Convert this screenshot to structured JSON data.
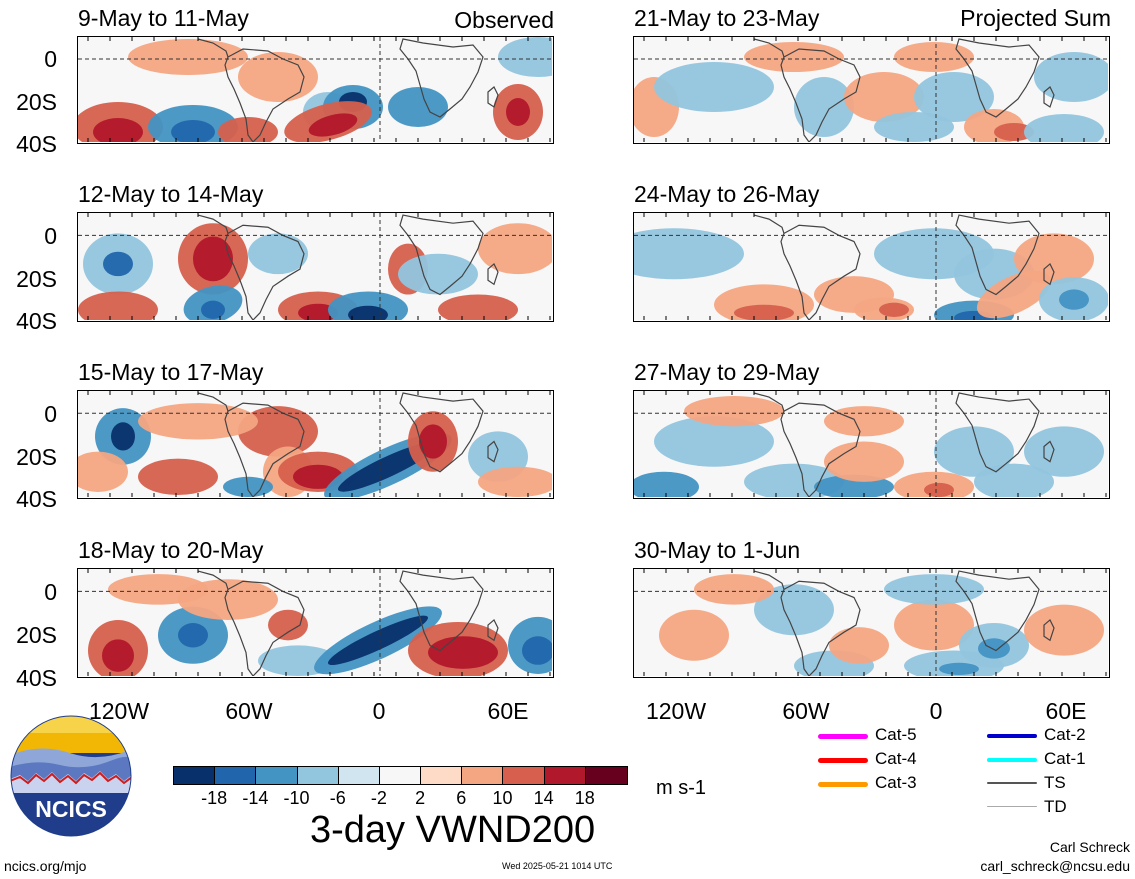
{
  "panels": {
    "left": [
      {
        "title": "9-May to 11-May"
      },
      {
        "title": "12-May to 14-May"
      },
      {
        "title": "15-May to 17-May"
      },
      {
        "title": "18-May to 20-May"
      }
    ],
    "right": [
      {
        "title": "21-May to 23-May"
      },
      {
        "title": "24-May to 26-May"
      },
      {
        "title": "27-May to 29-May"
      },
      {
        "title": "30-May to 1-Jun"
      }
    ]
  },
  "labels": {
    "observed": "Observed",
    "projected": "Projected Sum"
  },
  "axes": {
    "lat_ticks": [
      "0",
      "20S",
      "40S"
    ],
    "lon_ticks": [
      "120W",
      "60W",
      "0",
      "60E"
    ]
  },
  "colorbar": {
    "ticks": [
      "-18",
      "-14",
      "-10",
      "-6",
      "-2",
      "2",
      "6",
      "10",
      "14",
      "18"
    ],
    "colors": [
      "#08306b",
      "#2166ac",
      "#4393c3",
      "#92c5de",
      "#d1e5f0",
      "#f7f7f7",
      "#fddbc7",
      "#f4a582",
      "#d6604d",
      "#b2182b",
      "#67001f"
    ],
    "units": "m s-1"
  },
  "main_title": "3-day VWND200",
  "storm_legend": [
    {
      "label": "Cat-5",
      "color": "#ff00ff"
    },
    {
      "label": "Cat-4",
      "color": "#ff0000"
    },
    {
      "label": "Cat-3",
      "color": "#ff9900"
    },
    {
      "label": "Cat-2",
      "color": "#0000cc"
    },
    {
      "label": "Cat-1",
      "color": "#00ffff"
    },
    {
      "label": "TS",
      "color": "#555555"
    },
    {
      "label": "TD",
      "color": "#aaaaaa"
    }
  ],
  "logo": {
    "text": "NCICS"
  },
  "footer": {
    "url": "ncics.org/mjo",
    "timestamp": "Wed 2025-05-21 1014 UTC",
    "author": "Carl Schreck",
    "email": "carl_schreck@ncsu.edu"
  }
}
